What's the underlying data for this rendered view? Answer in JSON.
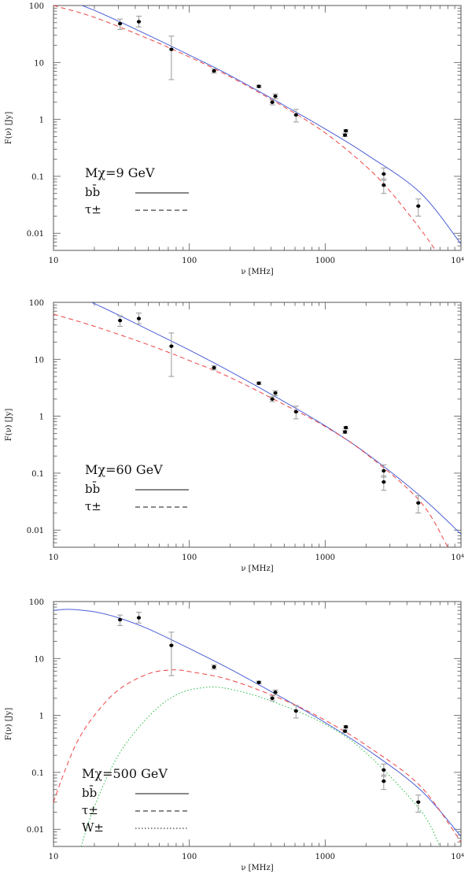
{
  "colors": {
    "bb": "#4b5fd6",
    "tau": "#ee4444",
    "w": "#22bb44",
    "data": "#000000",
    "errorbar": "#999999",
    "frame": "#555555"
  },
  "chart_data": [
    {
      "type": "line",
      "xlabel": "ν [MHz]",
      "ylabel": "F(ν) [Jy]",
      "xscale": "log",
      "yscale": "log",
      "xlim": [
        10,
        10000
      ],
      "ylim": [
        0.005,
        100
      ],
      "x_tick_labels": [
        "10",
        "100",
        "1000",
        "10⁴"
      ],
      "y_tick_labels": [
        "100",
        "10",
        "1",
        "0.1",
        "0.01"
      ],
      "legend": {
        "title": "Mχ=9 GeV",
        "entries": [
          {
            "label": "bb̄",
            "style": "solid"
          },
          {
            "label": "τ±",
            "style": "dashed"
          }
        ]
      },
      "points": [
        {
          "x": 30.9,
          "y": 48,
          "lo": 38,
          "hi": 58
        },
        {
          "x": 42.5,
          "y": 52,
          "lo": 42,
          "hi": 65
        },
        {
          "x": 73.8,
          "y": 17,
          "lo": 5,
          "hi": 29
        },
        {
          "x": 152,
          "y": 7.1,
          "lo": 6.5,
          "hi": 7.7
        },
        {
          "x": 325,
          "y": 3.8,
          "lo": 3.6,
          "hi": 4.0
        },
        {
          "x": 408,
          "y": 2.0,
          "lo": 1.8,
          "hi": 2.2
        },
        {
          "x": 430,
          "y": 2.55,
          "lo": 2.3,
          "hi": 2.8
        },
        {
          "x": 610,
          "y": 1.2,
          "lo": 0.9,
          "hi": 1.5
        },
        {
          "x": 1400,
          "y": 0.53,
          "lo": 0.5,
          "hi": 0.56
        },
        {
          "x": 1420,
          "y": 0.63,
          "lo": 0.6,
          "hi": 0.66
        },
        {
          "x": 2700,
          "y": 0.11,
          "lo": 0.085,
          "hi": 0.14
        },
        {
          "x": 2700,
          "y": 0.07,
          "lo": 0.05,
          "hi": 0.09
        },
        {
          "x": 4850,
          "y": 0.03,
          "lo": 0.02,
          "hi": 0.04
        }
      ],
      "series": [
        {
          "key": "bb",
          "style": "solid",
          "x": [
            10,
            20,
            50,
            100,
            200,
            500,
            1000,
            2000,
            5000,
            10000
          ],
          "y": [
            150,
            82,
            30,
            13.5,
            5.9,
            1.75,
            0.68,
            0.245,
            0.052,
            0.0065
          ]
        },
        {
          "key": "tau",
          "style": "dashed",
          "x": [
            10,
            20,
            50,
            100,
            200,
            500,
            1000,
            2000,
            3000,
            5000,
            6500
          ],
          "y": [
            100,
            62,
            26,
            12.5,
            5.6,
            1.65,
            0.58,
            0.15,
            0.055,
            0.012,
            0.005
          ]
        }
      ]
    },
    {
      "type": "line",
      "xlabel": "ν [MHz]",
      "ylabel": "F(ν) [Jy]",
      "xscale": "log",
      "yscale": "log",
      "xlim": [
        10,
        10000
      ],
      "ylim": [
        0.005,
        100
      ],
      "x_tick_labels": [
        "10",
        "100",
        "1000",
        "10⁴"
      ],
      "y_tick_labels": [
        "100",
        "10",
        "1",
        "0.1",
        "0.01"
      ],
      "legend": {
        "title": "Mχ=60 GeV",
        "entries": [
          {
            "label": "bb̄",
            "style": "solid"
          },
          {
            "label": "τ±",
            "style": "dashed"
          }
        ]
      },
      "points": [
        {
          "x": 30.9,
          "y": 48,
          "lo": 38,
          "hi": 58
        },
        {
          "x": 42.5,
          "y": 52,
          "lo": 42,
          "hi": 65
        },
        {
          "x": 73.8,
          "y": 17,
          "lo": 5,
          "hi": 29
        },
        {
          "x": 152,
          "y": 7.1,
          "lo": 6.5,
          "hi": 7.7
        },
        {
          "x": 325,
          "y": 3.8,
          "lo": 3.6,
          "hi": 4.0
        },
        {
          "x": 408,
          "y": 2.0,
          "lo": 1.8,
          "hi": 2.2
        },
        {
          "x": 430,
          "y": 2.55,
          "lo": 2.3,
          "hi": 2.8
        },
        {
          "x": 610,
          "y": 1.2,
          "lo": 0.9,
          "hi": 1.5
        },
        {
          "x": 1400,
          "y": 0.53,
          "lo": 0.5,
          "hi": 0.56
        },
        {
          "x": 1420,
          "y": 0.63,
          "lo": 0.6,
          "hi": 0.66
        },
        {
          "x": 2700,
          "y": 0.11,
          "lo": 0.085,
          "hi": 0.14
        },
        {
          "x": 2700,
          "y": 0.07,
          "lo": 0.05,
          "hi": 0.09
        },
        {
          "x": 4850,
          "y": 0.03,
          "lo": 0.02,
          "hi": 0.04
        }
      ],
      "series": [
        {
          "key": "bb",
          "style": "solid",
          "x": [
            10,
            20,
            50,
            100,
            200,
            500,
            1000,
            2000,
            5000,
            10000
          ],
          "y": [
            180,
            95,
            33,
            14.5,
            6.1,
            1.8,
            0.68,
            0.225,
            0.04,
            0.0085
          ]
        },
        {
          "key": "tau",
          "style": "dashed",
          "x": [
            10,
            20,
            50,
            100,
            200,
            500,
            1000,
            2000,
            5000,
            8000
          ],
          "y": [
            62,
            38,
            18,
            9.5,
            4.8,
            1.6,
            0.66,
            0.22,
            0.032,
            0.005
          ]
        }
      ]
    },
    {
      "type": "line",
      "xlabel": "ν [MHz]",
      "ylabel": "F(ν) [Jy]",
      "xscale": "log",
      "yscale": "log",
      "xlim": [
        10,
        10000
      ],
      "ylim": [
        0.005,
        100
      ],
      "x_tick_labels": [
        "10",
        "100",
        "1000",
        "10⁴"
      ],
      "y_tick_labels": [
        "100",
        "10",
        "1",
        "0.1",
        "0.01"
      ],
      "legend": {
        "title": "Mχ=500 GeV",
        "entries": [
          {
            "label": "bb̄",
            "style": "solid"
          },
          {
            "label": "τ±",
            "style": "dashed"
          },
          {
            "label": "W±",
            "style": "dotted"
          }
        ]
      },
      "points": [
        {
          "x": 30.9,
          "y": 48,
          "lo": 38,
          "hi": 58
        },
        {
          "x": 42.5,
          "y": 52,
          "lo": 42,
          "hi": 65
        },
        {
          "x": 73.8,
          "y": 17,
          "lo": 5,
          "hi": 29
        },
        {
          "x": 152,
          "y": 7.1,
          "lo": 6.5,
          "hi": 7.7
        },
        {
          "x": 325,
          "y": 3.8,
          "lo": 3.6,
          "hi": 4.0
        },
        {
          "x": 408,
          "y": 2.0,
          "lo": 1.8,
          "hi": 2.2
        },
        {
          "x": 430,
          "y": 2.55,
          "lo": 2.3,
          "hi": 2.8
        },
        {
          "x": 610,
          "y": 1.2,
          "lo": 0.9,
          "hi": 1.5
        },
        {
          "x": 1400,
          "y": 0.53,
          "lo": 0.5,
          "hi": 0.56
        },
        {
          "x": 1420,
          "y": 0.63,
          "lo": 0.6,
          "hi": 0.66
        },
        {
          "x": 2700,
          "y": 0.11,
          "lo": 0.085,
          "hi": 0.14
        },
        {
          "x": 2700,
          "y": 0.07,
          "lo": 0.05,
          "hi": 0.09
        },
        {
          "x": 4850,
          "y": 0.03,
          "lo": 0.02,
          "hi": 0.04
        }
      ],
      "series": [
        {
          "key": "bb",
          "style": "solid",
          "x": [
            10,
            13,
            20,
            30,
            50,
            100,
            200,
            500,
            1000,
            2000,
            5000,
            10000
          ],
          "y": [
            70,
            73,
            66,
            52,
            33,
            15,
            6.5,
            1.95,
            0.75,
            0.26,
            0.05,
            0.0075
          ]
        },
        {
          "key": "tau",
          "style": "dashed",
          "x": [
            10,
            12,
            15,
            20,
            30,
            50,
            75,
            100,
            200,
            500,
            1000,
            2000,
            5000,
            10000
          ],
          "y": [
            0.03,
            0.1,
            0.35,
            1.0,
            2.8,
            5.4,
            6.3,
            5.9,
            4.2,
            1.85,
            0.82,
            0.3,
            0.058,
            0.006
          ]
        },
        {
          "key": "w",
          "style": "dotted",
          "x": [
            16,
            20,
            30,
            50,
            80,
            130,
            200,
            400,
            1000,
            2000,
            5000,
            7000
          ],
          "y": [
            0.005,
            0.025,
            0.2,
            0.95,
            2.3,
            3.1,
            2.9,
            1.8,
            0.7,
            0.22,
            0.022,
            0.005
          ]
        }
      ]
    }
  ]
}
